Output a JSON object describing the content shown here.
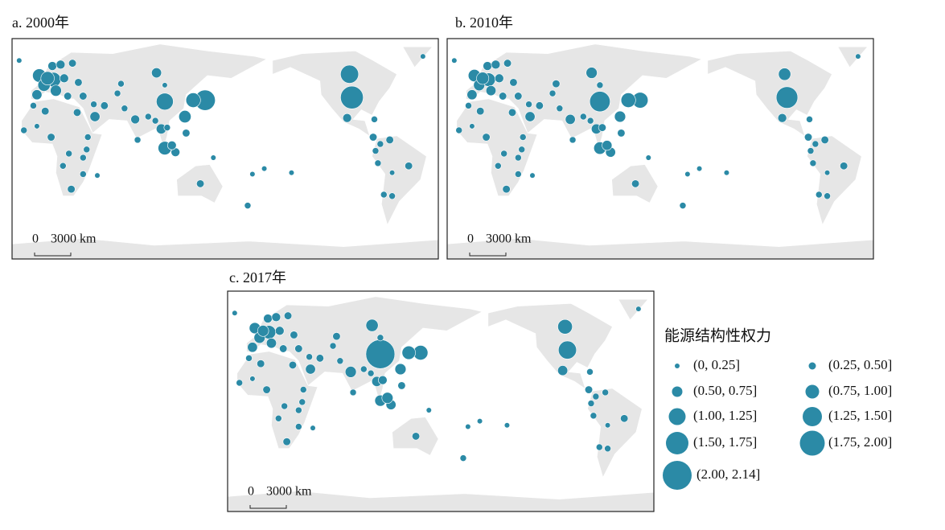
{
  "locations": {
    "lon": [
      104,
      -98,
      -100,
      138,
      128,
      97,
      10,
      -2,
      2,
      12,
      -4,
      79,
      113,
      104,
      101,
      110,
      134,
      -50,
      -102,
      45,
      53,
      25,
      8,
      30,
      -64,
      -71,
      174,
      67,
      35,
      -66,
      -74,
      -76,
      122,
      106,
      70,
      31,
      19,
      5,
      9,
      16,
      3,
      38,
      39,
      18,
      -79,
      178,
      -172,
      145,
      104,
      -15,
      -7,
      -38,
      -19,
      -4,
      23,
      35,
      35,
      47,
      -80,
      -78,
      -64,
      121,
      90,
      96,
      81,
      64,
      44,
      22,
      26,
      -149
    ],
    "lat": [
      35,
      38,
      55,
      36,
      36,
      56,
      51,
      54,
      47,
      43,
      40,
      22,
      -2,
      1,
      15,
      3,
      -25,
      -12,
      23,
      24,
      32,
      -29,
      9,
      27,
      -34,
      -33,
      -41,
      48,
      39,
      7,
      4,
      -10,
      12,
      16,
      30,
      49,
      52,
      52,
      61,
      62,
      28,
      0,
      9,
      -12,
      22,
      -18,
      -14,
      -6,
      47,
      14,
      32,
      68,
      65,
      17,
      -3,
      -6,
      -18,
      -19,
      9,
      -1,
      -17,
      24,
      24,
      21,
      7,
      41,
      33,
      39,
      63,
      -17
    ]
  },
  "panels": [
    {
      "title": "a. 2000年",
      "scale": {
        "zero": "0",
        "label": "3000 km"
      },
      "values": [
        1.1,
        1.6,
        1.2,
        1.4,
        0.9,
        0.5,
        0.9,
        0.8,
        0.7,
        0.6,
        0.5,
        0.4,
        0.4,
        0.8,
        0.5,
        0.4,
        0.3,
        0.3,
        0.4,
        0.5,
        0.3,
        0.3,
        0.3,
        0.3,
        0.2,
        0.2,
        0.2,
        0.2,
        0.3,
        0.3,
        0.2,
        0.2,
        0.3,
        0.2,
        0.2,
        0.3,
        0.4,
        0.8,
        0.4,
        0.4,
        0.3,
        0.2,
        0.2,
        0.2,
        0.2,
        0.1,
        0.1,
        0.1,
        0.1,
        0.2,
        0.2,
        0.1,
        0.1,
        0.1,
        0.2,
        0.2,
        0.2,
        0.1,
        0.3,
        0.2,
        0.1,
        0.7,
        0.2,
        0.2,
        0.2,
        0.2,
        0.2,
        0.3,
        0.3,
        0.1
      ]
    },
    {
      "title": "b. 2010年",
      "scale": {
        "zero": "0",
        "label": "3000 km"
      },
      "values": [
        1.4,
        1.5,
        0.7,
        1.0,
        0.9,
        0.6,
        0.8,
        0.7,
        0.6,
        0.5,
        0.5,
        0.5,
        0.5,
        0.7,
        0.5,
        0.5,
        0.3,
        0.3,
        0.4,
        0.5,
        0.3,
        0.3,
        0.3,
        0.3,
        0.2,
        0.2,
        0.2,
        0.3,
        0.3,
        0.3,
        0.2,
        0.2,
        0.3,
        0.3,
        0.2,
        0.3,
        0.4,
        0.7,
        0.4,
        0.4,
        0.3,
        0.2,
        0.2,
        0.2,
        0.2,
        0.1,
        0.1,
        0.1,
        0.2,
        0.2,
        0.2,
        0.1,
        0.1,
        0.1,
        0.2,
        0.2,
        0.2,
        0.1,
        0.3,
        0.2,
        0.1,
        0.6,
        0.2,
        0.2,
        0.2,
        0.2,
        0.2,
        0.3,
        0.3,
        0.1
      ]
    },
    {
      "title": "c. 2017年",
      "scale": {
        "zero": "0",
        "label": "3000 km"
      },
      "values": [
        2.14,
        1.2,
        0.9,
        0.9,
        0.8,
        0.7,
        0.8,
        0.6,
        0.6,
        0.5,
        0.5,
        0.6,
        0.5,
        0.6,
        0.5,
        0.6,
        0.3,
        0.3,
        0.5,
        0.5,
        0.3,
        0.3,
        0.3,
        0.3,
        0.2,
        0.2,
        0.2,
        0.3,
        0.3,
        0.2,
        0.2,
        0.2,
        0.3,
        0.4,
        0.2,
        0.3,
        0.4,
        0.6,
        0.4,
        0.4,
        0.3,
        0.2,
        0.2,
        0.2,
        0.2,
        0.1,
        0.1,
        0.1,
        0.2,
        0.2,
        0.2,
        0.1,
        0.1,
        0.1,
        0.2,
        0.2,
        0.2,
        0.1,
        0.3,
        0.2,
        0.1,
        0.6,
        0.2,
        0.2,
        0.2,
        0.2,
        0.2,
        0.3,
        0.3,
        0.1
      ]
    }
  ],
  "legend": {
    "title": "能源结构性权力",
    "items": [
      "(0, 0.25]",
      "(0.25, 0.50]",
      "(0.50, 0.75]",
      "(0.75, 1.00]",
      "(1.00, 1.25]",
      "(1.25, 1.50]",
      "(1.50, 1.75]",
      "(1.75, 2.00]",
      "(2.00, 2.14]"
    ]
  }
}
